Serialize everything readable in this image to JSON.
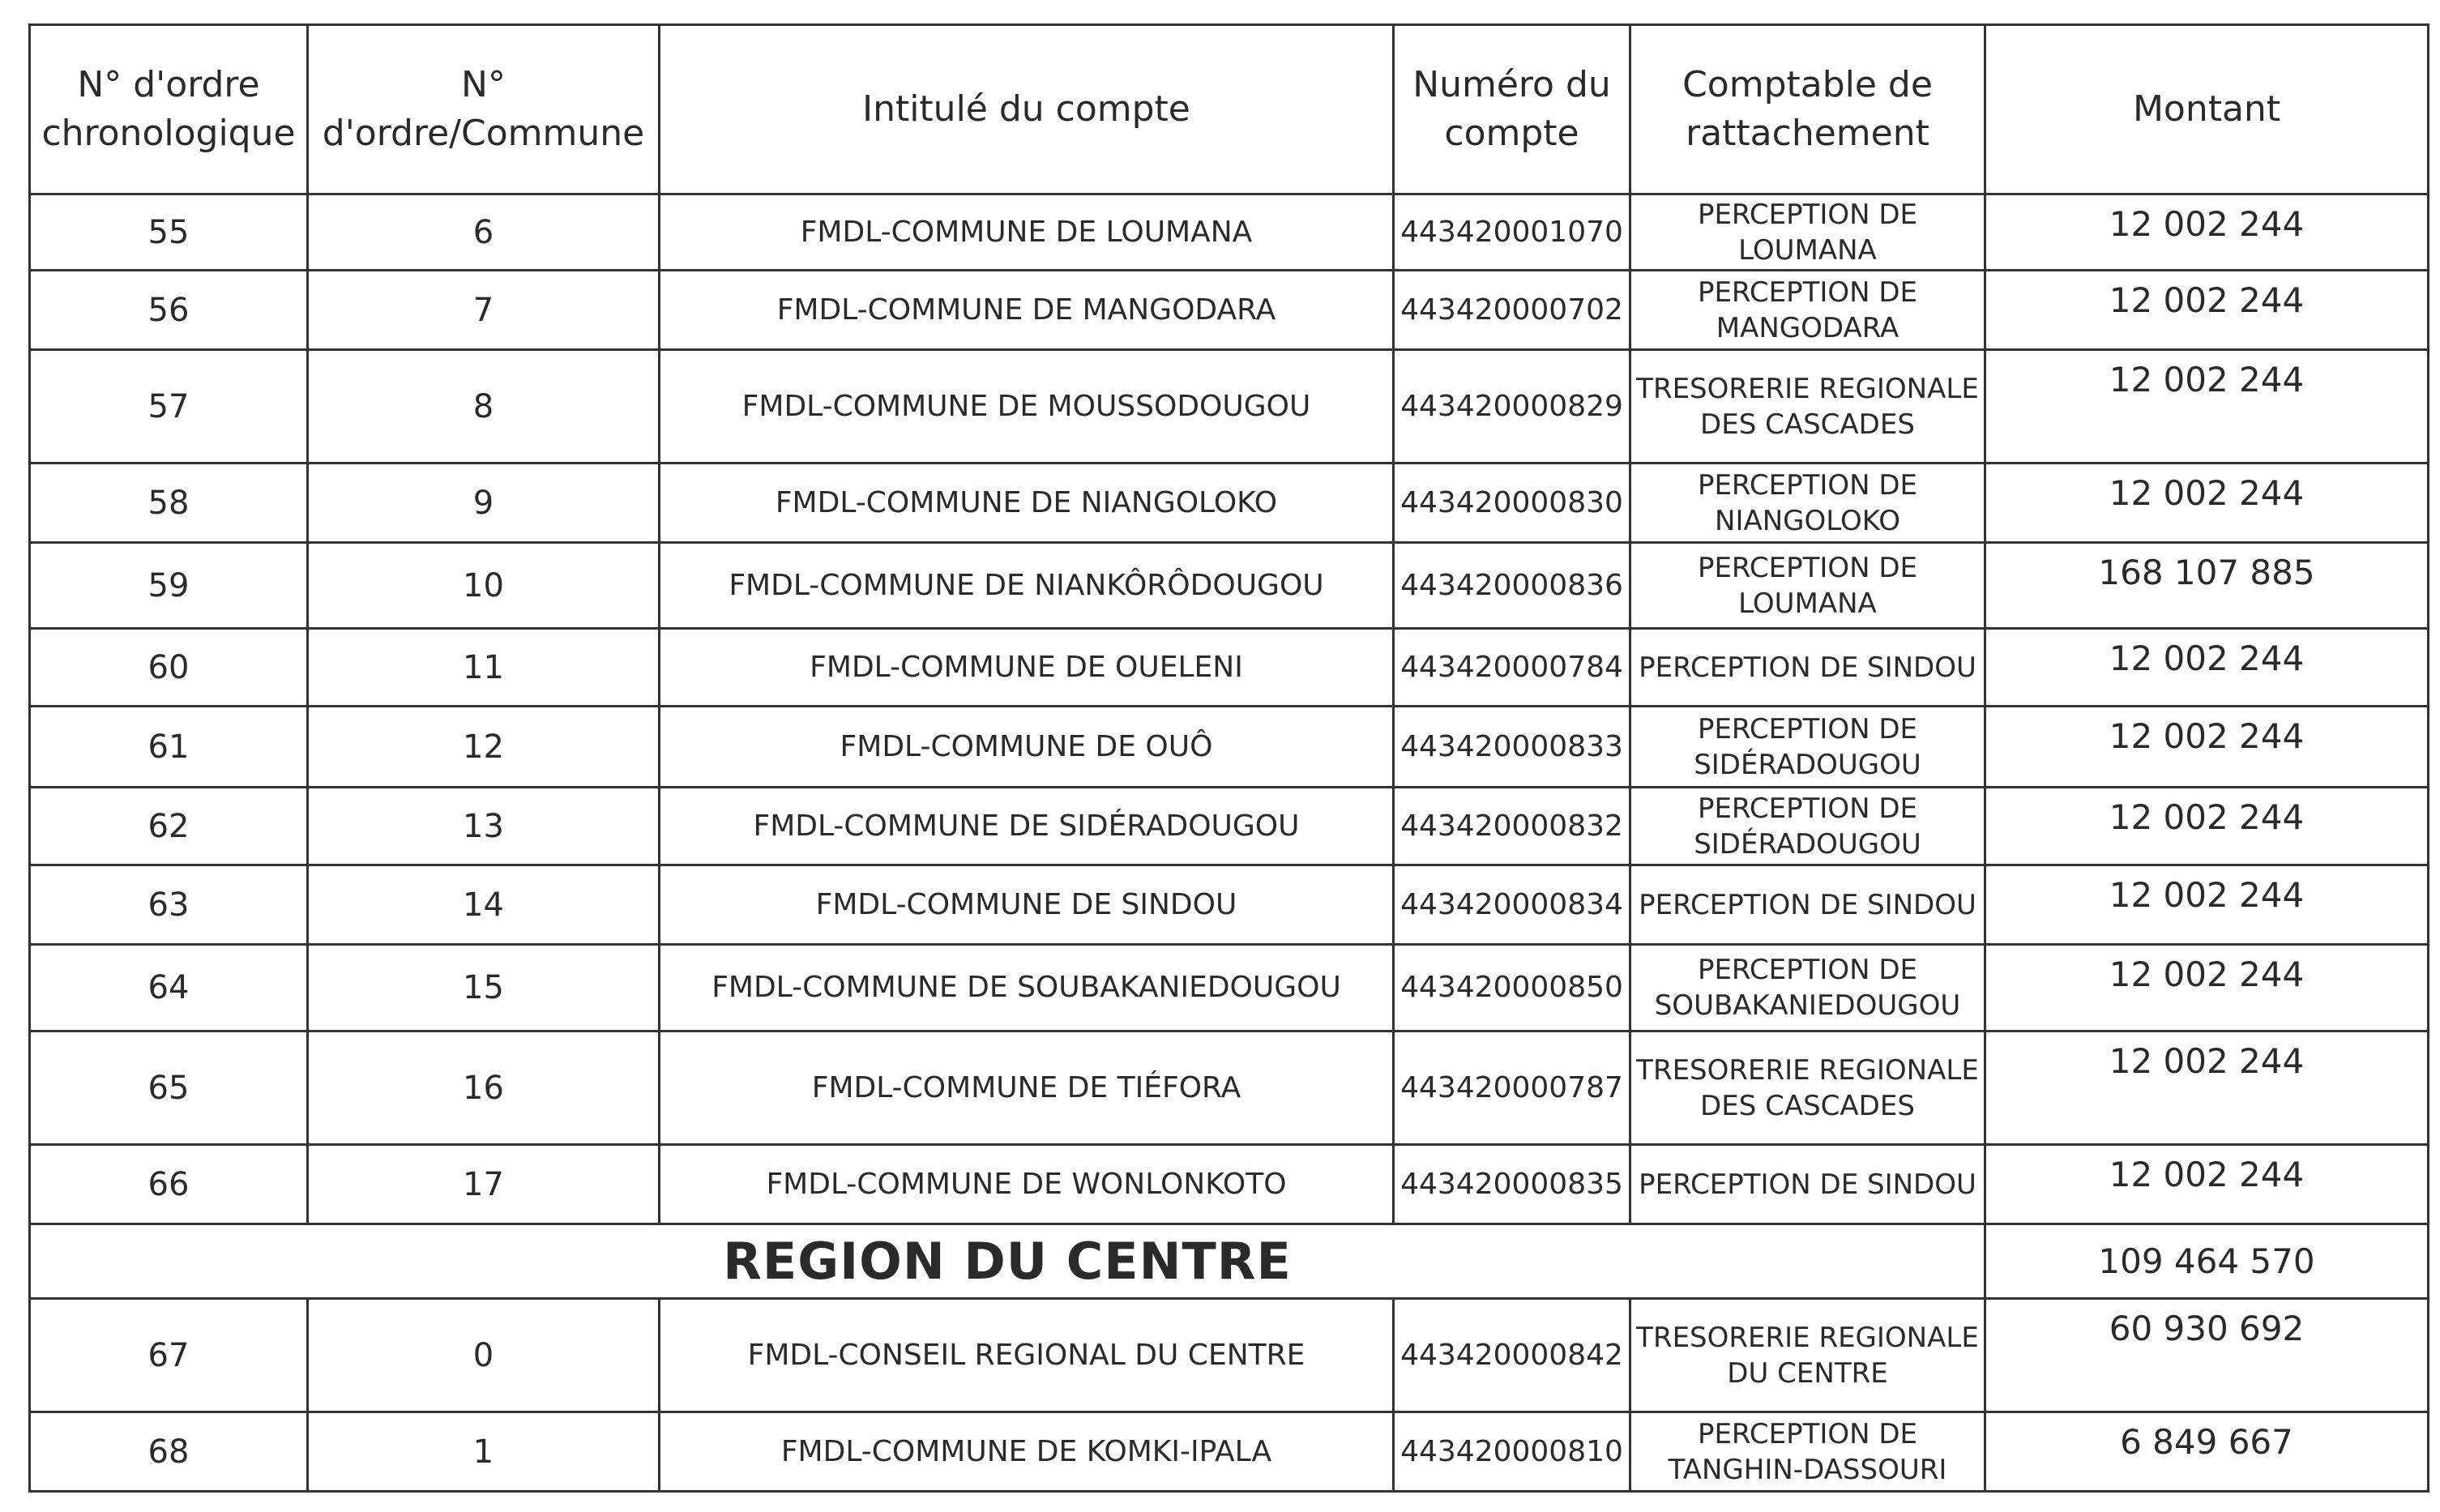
{
  "headers": [
    "N° d'ordre chronologique",
    "N° d'ordre/Commune",
    "Intitulé du compte",
    "Numéro du compte",
    "Comptable de rattachement",
    "Montant"
  ],
  "rows": [
    {
      "type": "row",
      "chrono": "55",
      "commune_no": "6",
      "intitule": "FMDL-COMMUNE DE LOUMANA",
      "numero": "443420001070",
      "comptable": "PERCEPTION DE LOUMANA",
      "montant": "12 002 244"
    },
    {
      "type": "row",
      "chrono": "56",
      "commune_no": "7",
      "intitule": "FMDL-COMMUNE DE MANGODARA",
      "numero": "443420000702",
      "comptable": "PERCEPTION DE MANGODARA",
      "montant": "12 002 244"
    },
    {
      "type": "row",
      "chrono": "57",
      "commune_no": "8",
      "intitule": "FMDL-COMMUNE DE MOUSSODOUGOU",
      "numero": "443420000829",
      "comptable": "TRESORERIE REGIONALE DES CASCADES",
      "montant": "12 002 244"
    },
    {
      "type": "row",
      "chrono": "58",
      "commune_no": "9",
      "intitule": "FMDL-COMMUNE DE NIANGOLOKO",
      "numero": "443420000830",
      "comptable": "PERCEPTION DE NIANGOLOKO",
      "montant": "12 002 244"
    },
    {
      "type": "row",
      "chrono": "59",
      "commune_no": "10",
      "intitule": "FMDL-COMMUNE DE NIANKÔRÔDOUGOU",
      "numero": "443420000836",
      "comptable": "PERCEPTION DE LOUMANA",
      "montant": "168 107 885"
    },
    {
      "type": "row",
      "chrono": "60",
      "commune_no": "11",
      "intitule": "FMDL-COMMUNE DE OUELENI",
      "numero": "443420000784",
      "comptable": "PERCEPTION DE SINDOU",
      "montant": "12 002 244"
    },
    {
      "type": "row",
      "chrono": "61",
      "commune_no": "12",
      "intitule": "FMDL-COMMUNE DE OUÔ",
      "numero": "443420000833",
      "comptable": "PERCEPTION DE SIDÉRADOUGOU",
      "montant": "12 002 244"
    },
    {
      "type": "row",
      "chrono": "62",
      "commune_no": "13",
      "intitule": "FMDL-COMMUNE DE SIDÉRADOUGOU",
      "numero": "443420000832",
      "comptable": "PERCEPTION DE SIDÉRADOUGOU",
      "montant": "12 002 244"
    },
    {
      "type": "row",
      "chrono": "63",
      "commune_no": "14",
      "intitule": "FMDL-COMMUNE DE SINDOU",
      "numero": "443420000834",
      "comptable": "PERCEPTION DE SINDOU",
      "montant": "12 002 244"
    },
    {
      "type": "row",
      "chrono": "64",
      "commune_no": "15",
      "intitule": "FMDL-COMMUNE DE SOUBAKANIEDOUGOU",
      "numero": "443420000850",
      "comptable": "PERCEPTION DE SOUBAKANIEDOUGOU",
      "montant": "12 002 244"
    },
    {
      "type": "row",
      "chrono": "65",
      "commune_no": "16",
      "intitule": "FMDL-COMMUNE DE TIÉFORA",
      "numero": "443420000787",
      "comptable": "TRESORERIE REGIONALE DES CASCADES",
      "montant": "12 002 244"
    },
    {
      "type": "row",
      "chrono": "66",
      "commune_no": "17",
      "intitule": "FMDL-COMMUNE DE WONLONKOTO",
      "numero": "443420000835",
      "comptable": "PERCEPTION DE SINDOU",
      "montant": "12 002 244"
    },
    {
      "type": "region",
      "label": "REGION DU CENTRE",
      "montant": "109 464 570"
    },
    {
      "type": "row",
      "chrono": "67",
      "commune_no": "0",
      "intitule": "FMDL-CONSEIL REGIONAL DU CENTRE",
      "numero": "443420000842",
      "comptable": "TRESORERIE REGIONALE DU CENTRE",
      "montant": "60 930 692"
    },
    {
      "type": "row",
      "chrono": "68",
      "commune_no": "1",
      "intitule": "FMDL-COMMUNE DE KOMKI-IPALA",
      "numero": "443420000810",
      "comptable": "PERCEPTION DE TANGHIN-DASSOURI",
      "montant": "6 849 667"
    }
  ]
}
